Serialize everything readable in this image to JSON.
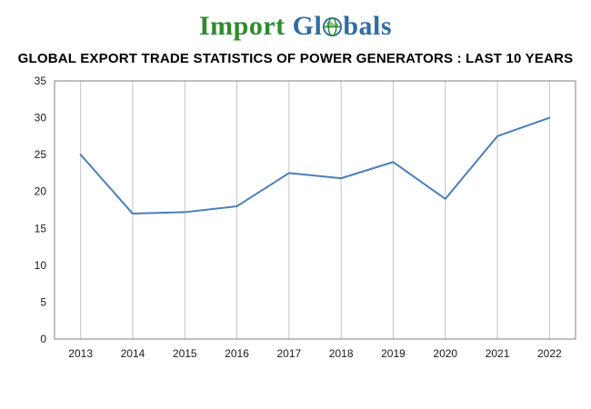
{
  "logo": {
    "import_text": "Import ",
    "gl_text": "Gl",
    "bals_text": "bals",
    "import_color": "#2e8b2e",
    "globals_color": "#2e6da4",
    "globe_stroke_color": "#2e6da4",
    "globe_land_color": "#2e8b2e"
  },
  "title": "GLOBAL EXPORT TRADE STATISTICS OF POWER GENERATORS : LAST 10 YEARS",
  "chart_data": {
    "type": "line",
    "categories": [
      "2013",
      "2014",
      "2015",
      "2016",
      "2017",
      "2018",
      "2019",
      "2020",
      "2021",
      "2022"
    ],
    "values": [
      25,
      17,
      17.2,
      18,
      22.5,
      21.8,
      24,
      19,
      27.5,
      30
    ],
    "title": "GLOBAL EXPORT TRADE STATISTICS OF POWER GENERATORS : LAST 10 YEARS",
    "xlabel": "",
    "ylabel": "",
    "ylim": [
      0,
      35
    ],
    "ytick_step": 5,
    "yticks": [
      0,
      5,
      10,
      15,
      20,
      25,
      30,
      35
    ],
    "grid": "vertical",
    "legend": "none",
    "line_color": "#4a7ebb",
    "gridline_color": "#c3c3c3",
    "plot_border_color": "#7f7f7f",
    "background_color": "#ffffff"
  }
}
